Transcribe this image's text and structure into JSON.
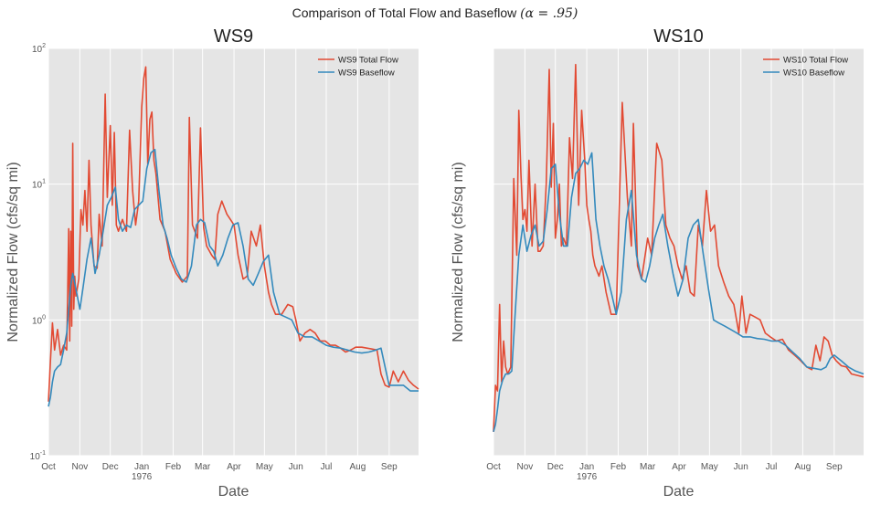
{
  "figure": {
    "title": "Comparison of Total Flow and Baseflow",
    "title_math": "(α = .95)"
  },
  "colors": {
    "total": "#e24a33",
    "base": "#348abd",
    "panel_bg": "#e5e5e5",
    "grid": "#ffffff"
  },
  "chart_data": [
    {
      "type": "line",
      "title": "WS9",
      "xlabel": "Date",
      "ylabel": "Normalized Flow (cfs/sq mi)",
      "yscale": "log",
      "ylim": [
        0.1,
        100
      ],
      "yticks": [
        "10^-1",
        "10^0",
        "10^1",
        "10^2"
      ],
      "xlim": [
        "1975-10-01",
        "1976-09-30"
      ],
      "xticks": [
        "Oct",
        "Nov",
        "Dec",
        "Jan",
        "Feb",
        "Mar",
        "Apr",
        "May",
        "Jun",
        "Jul",
        "Aug",
        "Sep"
      ],
      "xtick_year": "1976",
      "legend": "top-right",
      "grid": true,
      "series": [
        {
          "name": "WS9 Total Flow",
          "color": "#e24a33",
          "x": [
            "1975-10-01",
            "1975-10-03",
            "1975-10-05",
            "1975-10-07",
            "1975-10-10",
            "1975-10-13",
            "1975-10-16",
            "1975-10-19",
            "1975-10-21",
            "1975-10-22",
            "1975-10-23",
            "1975-10-24",
            "1975-10-25",
            "1975-10-26",
            "1975-10-27",
            "1975-10-28",
            "1975-10-31",
            "1975-11-02",
            "1975-11-04",
            "1975-11-06",
            "1975-11-08",
            "1975-11-10",
            "1975-11-12",
            "1975-11-15",
            "1975-11-18",
            "1975-11-20",
            "1975-11-23",
            "1975-11-26",
            "1975-11-28",
            "1975-12-01",
            "1975-12-03",
            "1975-12-05",
            "1975-12-07",
            "1975-12-09",
            "1975-12-13",
            "1975-12-17",
            "1975-12-20",
            "1975-12-23",
            "1975-12-26",
            "1975-12-29",
            "1976-01-01",
            "1976-01-03",
            "1976-01-05",
            "1976-01-07",
            "1976-01-09",
            "1976-01-11",
            "1976-01-13",
            "1976-01-15",
            "1976-01-19",
            "1976-01-24",
            "1976-01-29",
            "1976-02-04",
            "1976-02-10",
            "1976-02-15",
            "1976-02-17",
            "1976-02-20",
            "1976-02-25",
            "1976-02-28",
            "1976-03-02",
            "1976-03-05",
            "1976-03-10",
            "1976-03-13",
            "1976-03-16",
            "1976-03-20",
            "1976-03-25",
            "1976-04-01",
            "1976-04-05",
            "1976-04-10",
            "1976-04-14",
            "1976-04-18",
            "1976-04-23",
            "1976-04-27",
            "1976-05-01",
            "1976-05-05",
            "1976-05-08",
            "1976-05-12",
            "1976-05-18",
            "1976-05-24",
            "1976-05-29",
            "1976-06-01",
            "1976-06-05",
            "1976-06-10",
            "1976-06-15",
            "1976-06-20",
            "1976-06-25",
            "1976-06-30",
            "1976-07-05",
            "1976-07-10",
            "1976-07-15",
            "1976-07-20",
            "1976-07-25",
            "1976-07-30",
            "1976-08-05",
            "1976-08-10",
            "1976-08-15",
            "1976-08-20",
            "1976-08-24",
            "1976-08-28",
            "1976-09-01",
            "1976-09-05",
            "1976-09-10",
            "1976-09-15",
            "1976-09-20",
            "1976-09-25",
            "1976-09-30"
          ],
          "y": [
            0.25,
            0.5,
            0.95,
            0.6,
            0.85,
            0.55,
            0.65,
            0.6,
            4.7,
            0.7,
            4.5,
            0.9,
            20,
            1.2,
            2.1,
            1.5,
            2.0,
            6.5,
            5.0,
            9.0,
            4.5,
            15,
            5.0,
            2.5,
            2.4,
            6.0,
            3.5,
            46,
            8.0,
            27,
            7.0,
            24,
            5.0,
            4.5,
            5.5,
            4.5,
            25,
            9.0,
            5.0,
            7.5,
            37,
            60,
            73,
            14,
            30,
            34,
            15,
            12,
            5.5,
            4.5,
            2.8,
            2.2,
            1.9,
            2.1,
            31,
            5.0,
            4.0,
            26,
            4.8,
            3.5,
            3.0,
            2.8,
            6.0,
            7.5,
            6.0,
            5.0,
            3.0,
            2.0,
            2.1,
            4.5,
            3.5,
            5.0,
            2.5,
            1.6,
            1.3,
            1.1,
            1.1,
            1.3,
            1.25,
            1.0,
            0.7,
            0.8,
            0.85,
            0.8,
            0.7,
            0.7,
            0.65,
            0.65,
            0.62,
            0.58,
            0.6,
            0.63,
            0.63,
            0.62,
            0.61,
            0.6,
            0.4,
            0.33,
            0.32,
            0.42,
            0.35,
            0.42,
            0.36,
            0.33,
            0.31
          ]
        },
        {
          "name": "WS9 Baseflow",
          "color": "#348abd",
          "x": [
            "1975-10-01",
            "1975-10-03",
            "1975-10-05",
            "1975-10-07",
            "1975-10-10",
            "1975-10-13",
            "1975-10-16",
            "1975-10-19",
            "1975-10-21",
            "1975-10-23",
            "1975-10-25",
            "1975-10-28",
            "1975-11-01",
            "1975-11-04",
            "1975-11-08",
            "1975-11-12",
            "1975-11-16",
            "1975-11-20",
            "1975-11-24",
            "1975-11-28",
            "1975-12-02",
            "1975-12-06",
            "1975-12-09",
            "1975-12-13",
            "1975-12-17",
            "1975-12-21",
            "1975-12-25",
            "1975-12-29",
            "1976-01-02",
            "1976-01-06",
            "1976-01-10",
            "1976-01-14",
            "1976-01-18",
            "1976-01-22",
            "1976-01-26",
            "1976-01-30",
            "1976-02-04",
            "1976-02-09",
            "1976-02-14",
            "1976-02-19",
            "1976-02-24",
            "1976-02-28",
            "1976-03-03",
            "1976-03-08",
            "1976-03-12",
            "1976-03-16",
            "1976-03-21",
            "1976-03-26",
            "1976-03-31",
            "1976-04-05",
            "1976-04-10",
            "1976-04-15",
            "1976-04-20",
            "1976-04-25",
            "1976-04-30",
            "1976-05-05",
            "1976-05-10",
            "1976-05-16",
            "1976-05-22",
            "1976-05-28",
            "1976-06-03",
            "1976-06-10",
            "1976-06-17",
            "1976-06-24",
            "1976-07-01",
            "1976-07-08",
            "1976-07-15",
            "1976-07-22",
            "1976-07-29",
            "1976-08-05",
            "1976-08-12",
            "1976-08-19",
            "1976-08-24",
            "1976-08-28",
            "1976-09-01",
            "1976-09-08",
            "1976-09-15",
            "1976-09-22",
            "1976-09-30"
          ],
          "y": [
            0.23,
            0.27,
            0.35,
            0.42,
            0.45,
            0.47,
            0.6,
            0.8,
            1.2,
            1.8,
            2.2,
            1.7,
            1.2,
            1.7,
            2.8,
            4.0,
            2.2,
            3.0,
            4.5,
            7.0,
            8.0,
            9.5,
            5.5,
            4.5,
            5.0,
            4.8,
            6.5,
            7.0,
            7.5,
            13,
            17,
            18,
            9.0,
            5.0,
            4.0,
            3.0,
            2.4,
            2.0,
            1.9,
            2.5,
            5.0,
            5.5,
            5.2,
            3.5,
            3.2,
            2.5,
            3.0,
            4.0,
            5.0,
            5.2,
            3.5,
            2.0,
            1.8,
            2.2,
            2.7,
            3.0,
            1.6,
            1.1,
            1.05,
            1.0,
            0.8,
            0.75,
            0.75,
            0.7,
            0.65,
            0.63,
            0.62,
            0.6,
            0.58,
            0.57,
            0.58,
            0.6,
            0.62,
            0.45,
            0.33,
            0.33,
            0.33,
            0.3,
            0.3
          ]
        }
      ]
    },
    {
      "type": "line",
      "title": "WS10",
      "xlabel": "Date",
      "ylabel": "Normalized Flow (cfs/sq mi)",
      "yscale": "log",
      "ylim": [
        0.1,
        100
      ],
      "xlim": [
        "1975-10-01",
        "1976-09-30"
      ],
      "xticks": [
        "Oct",
        "Nov",
        "Dec",
        "Jan",
        "Feb",
        "Mar",
        "Apr",
        "May",
        "Jun",
        "Jul",
        "Aug",
        "Sep"
      ],
      "xtick_year": "1976",
      "legend": "top-right",
      "grid": true,
      "series": [
        {
          "name": "WS10 Total Flow",
          "color": "#e24a33",
          "x": [
            "1975-10-01",
            "1975-10-03",
            "1975-10-05",
            "1975-10-07",
            "1975-10-09",
            "1975-10-11",
            "1975-10-13",
            "1975-10-15",
            "1975-10-18",
            "1975-10-21",
            "1975-10-24",
            "1975-10-26",
            "1975-10-28",
            "1975-10-30",
            "1975-11-01",
            "1975-11-03",
            "1975-11-05",
            "1975-11-08",
            "1975-11-11",
            "1975-11-14",
            "1975-11-16",
            "1975-11-19",
            "1975-11-22",
            "1975-11-25",
            "1975-11-27",
            "1975-11-29",
            "1975-12-01",
            "1975-12-03",
            "1975-12-05",
            "1975-12-07",
            "1975-12-09",
            "1975-12-12",
            "1975-12-15",
            "1975-12-18",
            "1975-12-21",
            "1975-12-24",
            "1975-12-27",
            "1975-12-30",
            "1976-01-01",
            "1976-01-03",
            "1976-01-05",
            "1976-01-07",
            "1976-01-09",
            "1976-01-11",
            "1976-01-13",
            "1976-01-16",
            "1976-01-20",
            "1976-01-25",
            "1976-01-30",
            "1976-02-05",
            "1976-02-10",
            "1976-02-14",
            "1976-02-16",
            "1976-02-20",
            "1976-02-24",
            "1976-02-27",
            "1976-03-01",
            "1976-03-05",
            "1976-03-10",
            "1976-03-15",
            "1976-03-19",
            "1976-03-23",
            "1976-03-27",
            "1976-03-31",
            "1976-04-04",
            "1976-04-08",
            "1976-04-12",
            "1976-04-16",
            "1976-04-20",
            "1976-04-24",
            "1976-04-28",
            "1976-05-02",
            "1976-05-06",
            "1976-05-10",
            "1976-05-15",
            "1976-05-20",
            "1976-05-25",
            "1976-05-30",
            "1976-06-02",
            "1976-06-06",
            "1976-06-10",
            "1976-06-15",
            "1976-06-20",
            "1976-06-25",
            "1976-06-30",
            "1976-07-06",
            "1976-07-12",
            "1976-07-18",
            "1976-07-24",
            "1976-07-30",
            "1976-08-05",
            "1976-08-10",
            "1976-08-14",
            "1976-08-18",
            "1976-08-22",
            "1976-08-26",
            "1976-08-30",
            "1976-09-03",
            "1976-09-08",
            "1976-09-13",
            "1976-09-18",
            "1976-09-24",
            "1976-09-30"
          ],
          "y": [
            0.15,
            0.33,
            0.3,
            1.3,
            0.35,
            0.7,
            0.45,
            0.4,
            0.45,
            11,
            3.0,
            35,
            12,
            5.5,
            6.5,
            4.5,
            15,
            3.5,
            10,
            3.2,
            3.2,
            3.5,
            10,
            70,
            9.5,
            28,
            4.0,
            5.5,
            10,
            3.5,
            4.0,
            3.5,
            22,
            11,
            76,
            7.0,
            35,
            15,
            7.0,
            5.5,
            4.5,
            3.0,
            2.5,
            2.3,
            2.1,
            2.5,
            1.6,
            1.1,
            1.1,
            40,
            8.0,
            3.5,
            28,
            2.5,
            2.0,
            2.8,
            4.0,
            3.0,
            20,
            15,
            5.0,
            4.0,
            3.5,
            2.5,
            2.0,
            2.5,
            1.6,
            1.5,
            5.0,
            3.5,
            9.0,
            4.5,
            5.0,
            2.5,
            1.9,
            1.5,
            1.3,
            0.8,
            1.5,
            0.8,
            1.1,
            1.05,
            1.0,
            0.8,
            0.75,
            0.7,
            0.72,
            0.6,
            0.55,
            0.5,
            0.45,
            0.43,
            0.65,
            0.5,
            0.75,
            0.7,
            0.55,
            0.5,
            0.46,
            0.45,
            0.4,
            0.39,
            0.38
          ]
        },
        {
          "name": "WS10 Baseflow",
          "color": "#348abd",
          "x": [
            "1975-10-01",
            "1975-10-03",
            "1975-10-05",
            "1975-10-07",
            "1975-10-10",
            "1975-10-13",
            "1975-10-16",
            "1975-10-19",
            "1975-10-22",
            "1975-10-26",
            "1975-10-30",
            "1975-11-03",
            "1975-11-07",
            "1975-11-11",
            "1975-11-15",
            "1975-11-19",
            "1975-11-23",
            "1975-11-27",
            "1975-12-01",
            "1975-12-05",
            "1975-12-09",
            "1975-12-13",
            "1975-12-17",
            "1975-12-21",
            "1975-12-25",
            "1975-12-29",
            "1976-01-02",
            "1976-01-06",
            "1976-01-10",
            "1976-01-14",
            "1976-01-18",
            "1976-01-22",
            "1976-01-26",
            "1976-01-30",
            "1976-02-04",
            "1976-02-09",
            "1976-02-14",
            "1976-02-19",
            "1976-02-24",
            "1976-02-28",
            "1976-03-03",
            "1976-03-08",
            "1976-03-12",
            "1976-03-16",
            "1976-03-21",
            "1976-03-26",
            "1976-03-31",
            "1976-04-05",
            "1976-04-10",
            "1976-04-15",
            "1976-04-20",
            "1976-04-25",
            "1976-04-30",
            "1976-05-05",
            "1976-05-10",
            "1976-05-16",
            "1976-05-22",
            "1976-05-28",
            "1976-06-03",
            "1976-06-10",
            "1976-06-17",
            "1976-06-24",
            "1976-07-01",
            "1976-07-08",
            "1976-07-15",
            "1976-07-22",
            "1976-07-29",
            "1976-08-05",
            "1976-08-12",
            "1976-08-19",
            "1976-08-24",
            "1976-08-28",
            "1976-09-01",
            "1976-09-08",
            "1976-09-15",
            "1976-09-22",
            "1976-09-30"
          ],
          "y": [
            0.15,
            0.17,
            0.22,
            0.3,
            0.36,
            0.4,
            0.4,
            0.42,
            1.0,
            3.0,
            5.0,
            3.2,
            4.2,
            5.0,
            3.5,
            3.8,
            6.5,
            13,
            14,
            6.0,
            3.5,
            3.5,
            8.0,
            12,
            13,
            15,
            14,
            17,
            5.5,
            3.5,
            2.5,
            2.0,
            1.5,
            1.1,
            1.6,
            5.5,
            9.0,
            3.0,
            2.0,
            1.9,
            2.5,
            4.0,
            5.0,
            6.0,
            3.5,
            2.2,
            1.5,
            2.0,
            4.0,
            5.0,
            5.5,
            3.0,
            1.7,
            1.0,
            0.95,
            0.9,
            0.85,
            0.8,
            0.75,
            0.75,
            0.73,
            0.72,
            0.7,
            0.7,
            0.65,
            0.58,
            0.52,
            0.45,
            0.44,
            0.43,
            0.45,
            0.52,
            0.55,
            0.5,
            0.45,
            0.42,
            0.4
          ]
        }
      ]
    }
  ]
}
